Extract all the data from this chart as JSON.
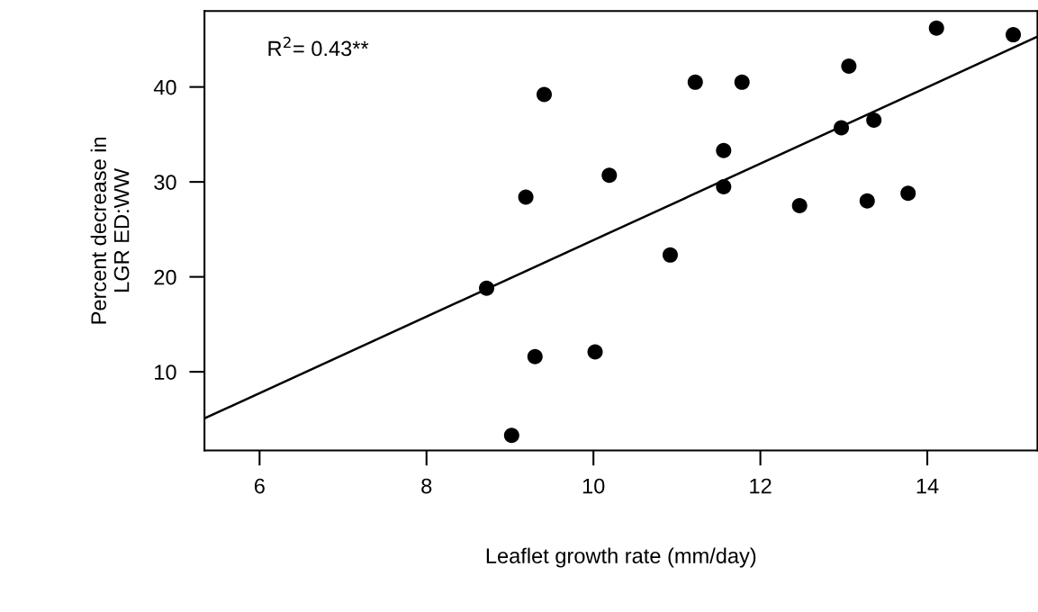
{
  "chart_data": {
    "type": "scatter",
    "xlabel": "Leaflet growth rate (mm/day)",
    "ylabel": "Percent decrease in\nLGR ED:WW",
    "annotations": [
      "R$^{2}$= 0.43**"
    ],
    "series": [
      {
        "color": "#000000",
        "marker": "circle",
        "x": [
          9.41,
          10.19,
          9.19,
          8.72,
          9.3,
          10.02,
          9.02,
          11.22,
          11.78,
          13.06,
          14.11,
          15.03,
          13.36,
          12.97,
          11.56,
          11.56,
          10.92,
          12.47,
          13.28,
          13.77
        ],
        "values": [
          39.2,
          30.7,
          28.4,
          18.8,
          11.6,
          12.1,
          3.3,
          40.5,
          40.5,
          42.2,
          46.2,
          45.5,
          36.5,
          35.7,
          33.3,
          29.5,
          22.3,
          27.5,
          28.0,
          28.8
        ]
      },
      {
        "type": "line",
        "color": "#000000",
        "marker": "none",
        "line_style": "solid",
        "x": [
          5.34,
          15.32
        ],
        "values": [
          5.1,
          45.3
        ]
      }
    ],
    "xlim": [
      5.34,
      15.32
    ],
    "ylim": [
      1.72,
      48.0
    ],
    "xticks": [
      6,
      8,
      10,
      12,
      14
    ],
    "yticks": [
      10,
      20,
      30,
      40
    ],
    "grid": false
  }
}
